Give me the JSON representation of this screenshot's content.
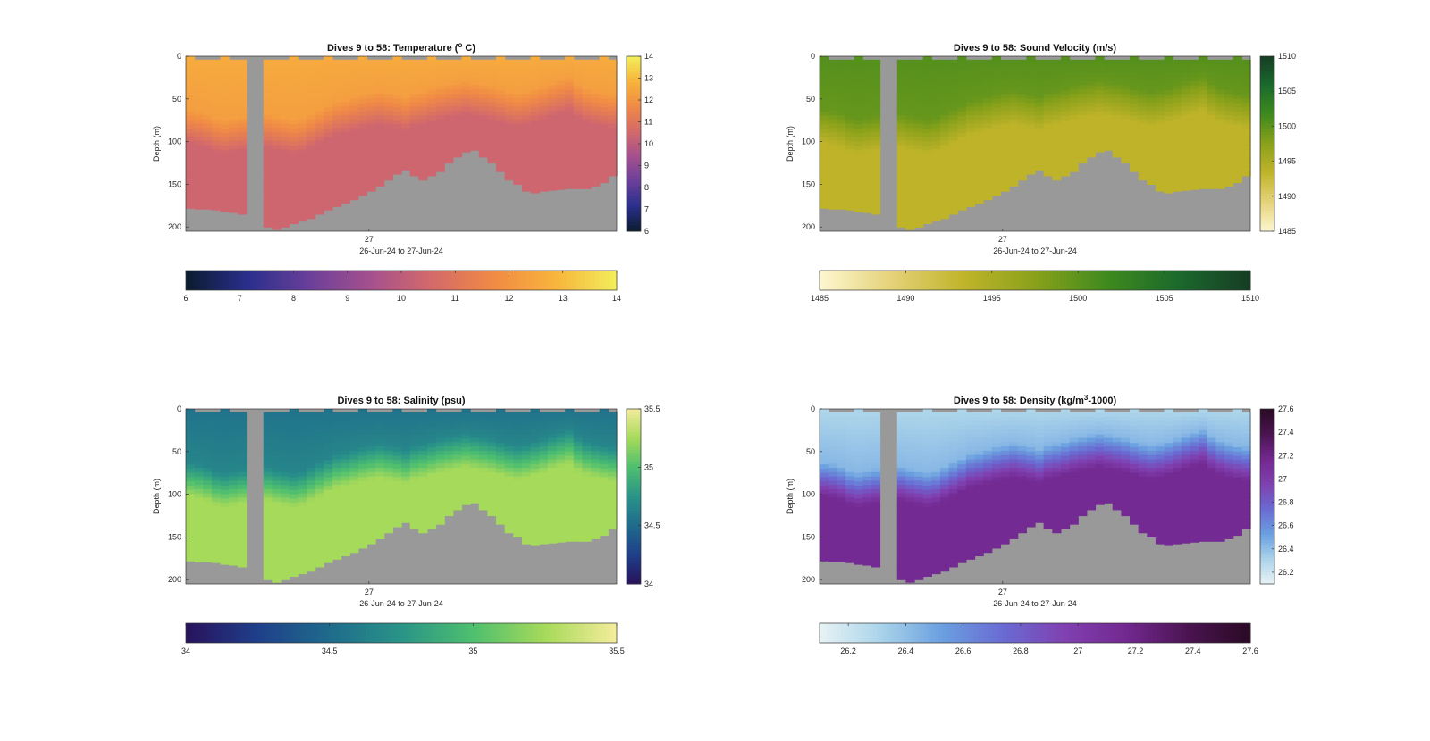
{
  "panels": [
    {
      "key": "temperature",
      "title": "Dives 9 to 58: Temperature (",
      "title_sup": "o",
      "title_tail": " C)",
      "ylabel": "Depth (m)",
      "xlabel": "26-Jun-24 to 27-Jun-24",
      "x_tick": "27",
      "y_ticks": [
        "0",
        "50",
        "100",
        "150",
        "200"
      ],
      "colorbar_ticks": [
        "6",
        "7",
        "8",
        "9",
        "10",
        "11",
        "12",
        "13",
        "14"
      ],
      "hbar_ticks": [
        "6",
        "7",
        "8",
        "9",
        "10",
        "11",
        "12",
        "13",
        "14"
      ],
      "clim": [
        6,
        14
      ],
      "colormap": [
        "#0b1b2e",
        "#2a2f8c",
        "#6a3f9a",
        "#a5508e",
        "#d46a6a",
        "#f08a45",
        "#f8b43c",
        "#f2ef5a"
      ],
      "surface_value": 12.6,
      "deep_value": 10.4
    },
    {
      "key": "sound_velocity",
      "title": "Dives 9 to 58: Sound Velocity (m/s)",
      "title_sup": "",
      "title_tail": "",
      "ylabel": "Depth (m)",
      "xlabel": "26-Jun-24 to 27-Jun-24",
      "x_tick": "27",
      "y_ticks": [
        "0",
        "50",
        "100",
        "150",
        "200"
      ],
      "colorbar_ticks": [
        "1485",
        "1490",
        "1495",
        "1500",
        "1505",
        "1510"
      ],
      "hbar_ticks": [
        "1485",
        "1490",
        "1495",
        "1500",
        "1505",
        "1510"
      ],
      "clim": [
        1485,
        1510
      ],
      "colormap": [
        "#fdf7d0",
        "#e5d27a",
        "#c0b42a",
        "#8aa11a",
        "#3f8a1e",
        "#1b6a2c",
        "#163d24"
      ],
      "surface_value": 1500.5,
      "deep_value": 1493.5
    },
    {
      "key": "salinity",
      "title": "Dives 9 to 58: Salinity (psu)",
      "title_sup": "",
      "title_tail": "",
      "ylabel": "Depth (m)",
      "xlabel": "26-Jun-24 to 27-Jun-24",
      "x_tick": "27",
      "y_ticks": [
        "0",
        "50",
        "100",
        "150",
        "200"
      ],
      "colorbar_ticks": [
        "34",
        "34.5",
        "35",
        "35.5"
      ],
      "hbar_ticks": [
        "34",
        "34.5",
        "35",
        "35.5"
      ],
      "clim": [
        34,
        35.5
      ],
      "colormap": [
        "#28125c",
        "#1f3f8a",
        "#1f6b8c",
        "#2a9488",
        "#4fbf6f",
        "#a6da5a",
        "#f5ec9c"
      ],
      "surface_value": 34.55,
      "deep_value": 35.25
    },
    {
      "key": "density",
      "title": "Dives 9 to 58: Density (kg/m",
      "title_sup": "3",
      "title_tail": "-1000)",
      "ylabel": "Depth (m)",
      "xlabel": "26-Jun-24 to 27-Jun-24",
      "x_tick": "27",
      "y_ticks": [
        "0",
        "50",
        "100",
        "150",
        "200"
      ],
      "colorbar_ticks": [
        "26.2",
        "26.4",
        "26.6",
        "26.8",
        "27",
        "27.2",
        "27.4",
        "27.6"
      ],
      "hbar_ticks": [
        "26.2",
        "26.4",
        "26.6",
        "26.8",
        "27",
        "27.2",
        "27.4",
        "27.6"
      ],
      "clim": [
        26.1,
        27.6
      ],
      "colormap": [
        "#e8f3f5",
        "#aad3ea",
        "#6a9fe0",
        "#6a6ad2",
        "#8040b0",
        "#72288f",
        "#4a1450",
        "#2a0a24"
      ],
      "surface_value": 26.3,
      "deep_value": 27.15
    }
  ],
  "chart_data": {
    "type": "heatmap",
    "title": "Dives 9 to 58",
    "x_label": "26-Jun-24 to 27-Jun-24",
    "y_label": "Depth (m)",
    "ylim": [
      0,
      205
    ],
    "y_direction": "reversed",
    "grid": false,
    "n_profiles": 50,
    "gap_profiles": [
      7,
      8
    ],
    "bottom_depth_m": [
      178,
      179,
      179,
      180,
      182,
      183,
      185,
      205,
      205,
      200,
      203,
      200,
      196,
      193,
      190,
      185,
      180,
      176,
      172,
      168,
      163,
      158,
      152,
      145,
      138,
      133,
      140,
      145,
      140,
      135,
      125,
      118,
      112,
      110,
      118,
      125,
      135,
      145,
      150,
      158,
      160,
      158,
      157,
      156,
      155,
      155,
      155,
      152,
      148,
      140
    ],
    "surface_mixed_layer_depth_m": [
      60,
      62,
      65,
      70,
      72,
      70,
      68,
      0,
      0,
      65,
      68,
      70,
      72,
      70,
      65,
      60,
      55,
      50,
      48,
      45,
      42,
      40,
      38,
      40,
      42,
      45,
      40,
      38,
      35,
      32,
      30,
      28,
      26,
      28,
      30,
      32,
      35,
      38,
      40,
      38,
      35,
      32,
      28,
      25,
      22,
      30,
      35,
      38,
      40,
      42
    ],
    "series": [
      {
        "name": "Temperature",
        "surface": 12.6,
        "deep": 10.4,
        "clim": [
          6,
          14
        ]
      },
      {
        "name": "Sound Velocity",
        "surface": 1500.5,
        "deep": 1493.5,
        "clim": [
          1485,
          1510
        ]
      },
      {
        "name": "Salinity",
        "surface": 34.55,
        "deep": 35.25,
        "clim": [
          34,
          35.5
        ]
      },
      {
        "name": "Density",
        "surface": 26.3,
        "deep": 27.15,
        "clim": [
          26.1,
          27.6
        ]
      }
    ]
  }
}
